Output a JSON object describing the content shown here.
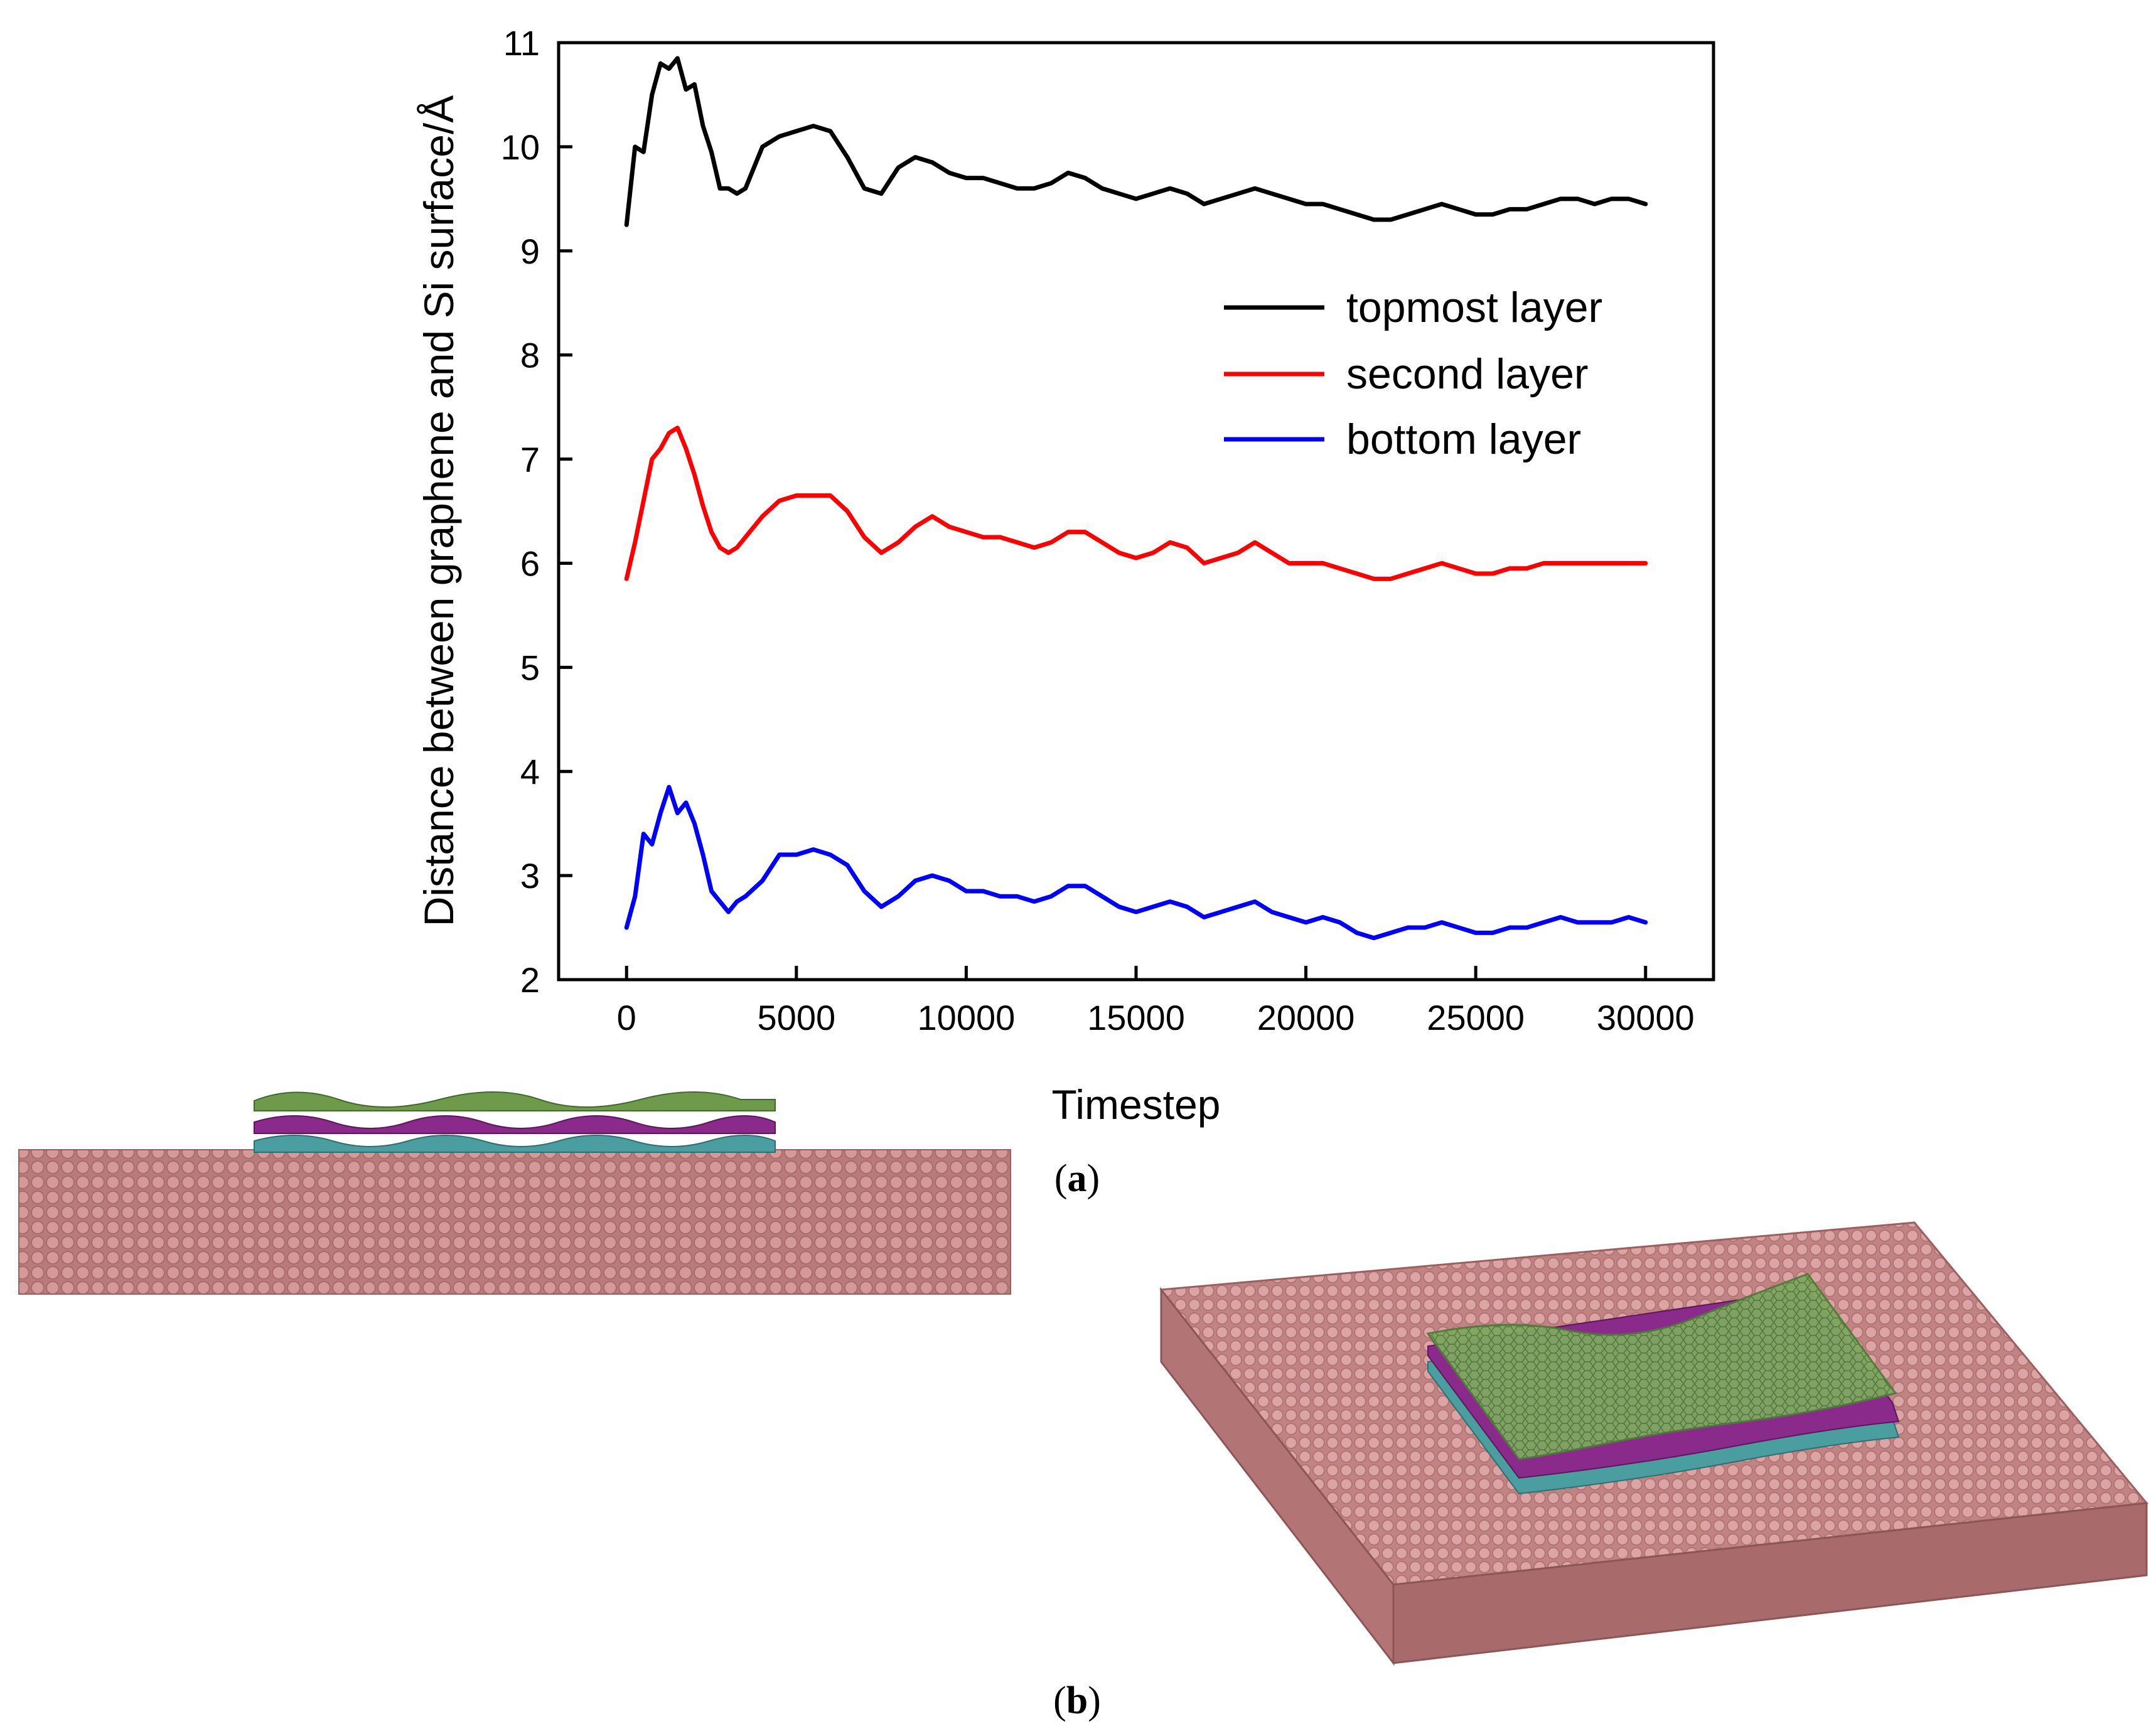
{
  "chart_data": {
    "type": "line",
    "xlabel": "Timestep",
    "ylabel": "Distance between graphene and Si surface/Å",
    "xlim": [
      -2000,
      32000
    ],
    "ylim": [
      2,
      11
    ],
    "xticks": [
      0,
      5000,
      10000,
      15000,
      20000,
      25000,
      30000
    ],
    "xtick_labels": [
      "0",
      "5000",
      "10000",
      "15000",
      "20000",
      "25000",
      "30000"
    ],
    "yticks": [
      2,
      3,
      4,
      5,
      6,
      7,
      8,
      9,
      10,
      11
    ],
    "ytick_labels": [
      "2",
      "3",
      "4",
      "5",
      "6",
      "7",
      "8",
      "9",
      "10",
      "11"
    ],
    "legend_position": "right, upper-middle",
    "x": [
      0,
      250,
      500,
      750,
      1000,
      1250,
      1500,
      1750,
      2000,
      2250,
      2500,
      2750,
      3000,
      3250,
      3500,
      4000,
      4500,
      5000,
      5500,
      6000,
      6500,
      7000,
      7500,
      8000,
      8500,
      9000,
      9500,
      10000,
      10500,
      11000,
      11500,
      12000,
      12500,
      13000,
      13500,
      14000,
      14500,
      15000,
      15500,
      16000,
      16500,
      17000,
      17500,
      18000,
      18500,
      19000,
      19500,
      20000,
      20500,
      21000,
      21500,
      22000,
      22500,
      23000,
      23500,
      24000,
      24500,
      25000,
      25500,
      26000,
      26500,
      27000,
      27500,
      28000,
      28500,
      29000,
      29500,
      30000
    ],
    "series": [
      {
        "name": "topmost layer",
        "color": "#000000",
        "values": [
          9.25,
          10.0,
          9.95,
          10.5,
          10.8,
          10.75,
          10.85,
          10.55,
          10.6,
          10.2,
          9.95,
          9.6,
          9.6,
          9.55,
          9.6,
          10.0,
          10.1,
          10.15,
          10.2,
          10.15,
          9.9,
          9.6,
          9.55,
          9.8,
          9.9,
          9.85,
          9.75,
          9.7,
          9.7,
          9.65,
          9.6,
          9.6,
          9.65,
          9.75,
          9.7,
          9.6,
          9.55,
          9.5,
          9.55,
          9.6,
          9.55,
          9.45,
          9.5,
          9.55,
          9.6,
          9.55,
          9.5,
          9.45,
          9.45,
          9.4,
          9.35,
          9.3,
          9.3,
          9.35,
          9.4,
          9.45,
          9.4,
          9.35,
          9.35,
          9.4,
          9.4,
          9.45,
          9.5,
          9.5,
          9.45,
          9.5,
          9.5,
          9.45
        ]
      },
      {
        "name": "second layer",
        "color": "#ff0000",
        "values": [
          5.85,
          6.2,
          6.6,
          7.0,
          7.1,
          7.25,
          7.3,
          7.1,
          6.85,
          6.55,
          6.3,
          6.15,
          6.1,
          6.15,
          6.25,
          6.45,
          6.6,
          6.65,
          6.65,
          6.65,
          6.5,
          6.25,
          6.1,
          6.2,
          6.35,
          6.45,
          6.35,
          6.3,
          6.25,
          6.25,
          6.2,
          6.15,
          6.2,
          6.3,
          6.3,
          6.2,
          6.1,
          6.05,
          6.1,
          6.2,
          6.15,
          6.0,
          6.05,
          6.1,
          6.2,
          6.1,
          6.0,
          6.0,
          6.0,
          5.95,
          5.9,
          5.85,
          5.85,
          5.9,
          5.95,
          6.0,
          5.95,
          5.9,
          5.9,
          5.95,
          5.95,
          6.0,
          6.0,
          6.0,
          6.0,
          6.0,
          6.0,
          6.0
        ]
      },
      {
        "name": "bottom layer",
        "color": "#0000ff",
        "values": [
          2.5,
          2.8,
          3.4,
          3.3,
          3.6,
          3.85,
          3.6,
          3.7,
          3.5,
          3.2,
          2.85,
          2.75,
          2.65,
          2.75,
          2.8,
          2.95,
          3.2,
          3.2,
          3.25,
          3.2,
          3.1,
          2.85,
          2.7,
          2.8,
          2.95,
          3.0,
          2.95,
          2.85,
          2.85,
          2.8,
          2.8,
          2.75,
          2.8,
          2.9,
          2.9,
          2.8,
          2.7,
          2.65,
          2.7,
          2.75,
          2.7,
          2.6,
          2.65,
          2.7,
          2.75,
          2.65,
          2.6,
          2.55,
          2.6,
          2.55,
          2.45,
          2.4,
          2.45,
          2.5,
          2.5,
          2.55,
          2.5,
          2.45,
          2.45,
          2.5,
          2.5,
          2.55,
          2.6,
          2.55,
          2.55,
          2.55,
          2.6,
          2.55
        ]
      }
    ]
  },
  "captions": {
    "panel_a": "a",
    "panel_b": "b"
  },
  "colors": {
    "substrate": "#c98787",
    "graphene_top": "#6f9a4b",
    "graphene_middle": "#8a2a8a",
    "graphene_bottom": "#4a9ea0"
  }
}
